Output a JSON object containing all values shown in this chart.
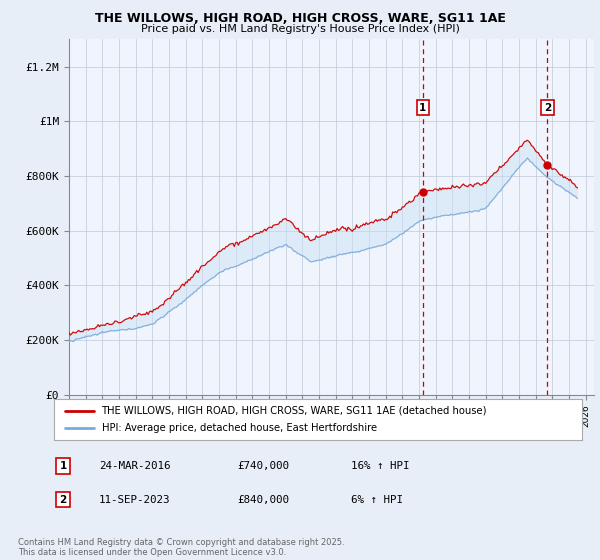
{
  "title": "THE WILLOWS, HIGH ROAD, HIGH CROSS, WARE, SG11 1AE",
  "subtitle": "Price paid vs. HM Land Registry's House Price Index (HPI)",
  "ylabel_ticks": [
    "£0",
    "£200K",
    "£400K",
    "£600K",
    "£800K",
    "£1M",
    "£1.2M"
  ],
  "ytick_values": [
    0,
    200000,
    400000,
    600000,
    800000,
    1000000,
    1200000
  ],
  "ylim": [
    0,
    1300000
  ],
  "xlim_start": 1995.0,
  "xlim_end": 2026.5,
  "line1_color": "#cc0000",
  "line2_color": "#7aaadd",
  "fill_color": "#c8dff5",
  "vline_color": "#cc0000",
  "vline1_x": 2016.23,
  "vline2_x": 2023.71,
  "marker1_label": "1",
  "marker2_label": "2",
  "sale1_x": 2016.23,
  "sale1_y": 740000,
  "sale2_x": 2023.71,
  "sale2_y": 840000,
  "legend_line1": "THE WILLOWS, HIGH ROAD, HIGH CROSS, WARE, SG11 1AE (detached house)",
  "legend_line2": "HPI: Average price, detached house, East Hertfordshire",
  "annotation1_date": "24-MAR-2016",
  "annotation1_price": "£740,000",
  "annotation1_hpi": "16% ↑ HPI",
  "annotation2_date": "11-SEP-2023",
  "annotation2_price": "£840,000",
  "annotation2_hpi": "6% ↑ HPI",
  "footer": "Contains HM Land Registry data © Crown copyright and database right 2025.\nThis data is licensed under the Open Government Licence v3.0.",
  "background_color": "#e8eef8",
  "plot_bg_color": "#f0f4fc",
  "legend_bg": "#ffffff"
}
